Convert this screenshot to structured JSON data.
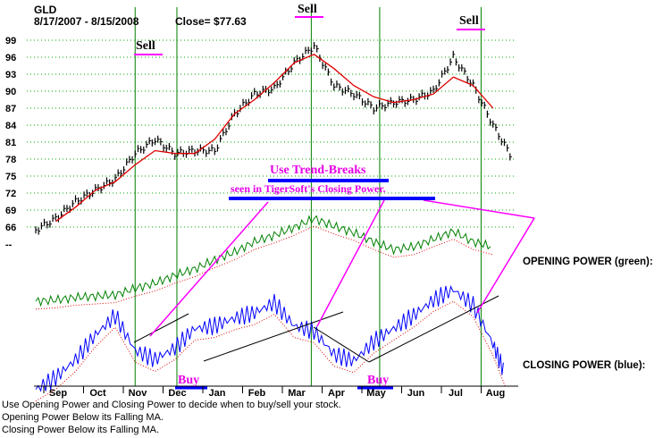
{
  "header": {
    "ticker": "GLD",
    "date_range": "8/17/2007 - 8/15/2008",
    "close": "Close= $77.63"
  },
  "annotations": {
    "trend_note_line1": "Use Trend-Breaks",
    "trend_note_line2": "seen in TigerSoft's Closing Power.",
    "signals": [
      "Sell",
      "Sell",
      "Sell",
      "Buy",
      "Buy"
    ]
  },
  "side_labels": {
    "opening_power": "OPENING POWER (green):",
    "closing_power": "CLOSING POWER (blue):"
  },
  "captions": [
    "Use Opening Power and Closing Power to decide when to buy/sell your stock.",
    "Opening Power Below its Falling MA.",
    "Closing Power Below its Falling MA."
  ],
  "colors": {
    "price_bars": "#000000",
    "moving_average": "#e00000",
    "opening_power": "#008000",
    "closing_power": "#0000ff",
    "trend_lines": "#000000",
    "annotation_lines": "#ff00ff",
    "signal_underline": "#ff00ff",
    "signal_vertical": "#008000",
    "gridline": "#00aa00"
  },
  "chart_data": {
    "type": "line",
    "title": "",
    "y_ticks": [
      "99",
      "96",
      "93",
      "90",
      "87",
      "84",
      "81",
      "78",
      "75",
      "72",
      "69",
      "66",
      "--"
    ],
    "months": [
      "Sep",
      "Oct",
      "Nov",
      "Dec",
      "Jan",
      "Feb",
      "Mar",
      "Apr",
      "May",
      "Jun",
      "Jul",
      "Aug"
    ],
    "ylim": [
      63,
      101
    ],
    "series": [
      {
        "key": "price",
        "name": "",
        "x_month": [
          0,
          0.5,
          1,
          1.5,
          2,
          2.5,
          3,
          3.5,
          4,
          4.5,
          5,
          5.5,
          6,
          6.5,
          7,
          7.5,
          8,
          8.5,
          9,
          9.5,
          10,
          10.5,
          11,
          11.5,
          12
        ],
        "values": [
          65.5,
          67.5,
          70.5,
          72.5,
          74.5,
          79,
          81.5,
          79,
          79.5,
          79.5,
          86,
          89.5,
          90.5,
          95,
          98,
          91,
          89.5,
          87,
          88,
          88.5,
          90,
          96,
          91,
          84,
          78
        ]
      },
      {
        "key": "ma",
        "name": "",
        "x_month": [
          0.5,
          1,
          1.5,
          2,
          2.5,
          3,
          3.5,
          4,
          4.5,
          5,
          5.5,
          6,
          6.5,
          7,
          7.5,
          8,
          8.5,
          9,
          9.5,
          10,
          10.5,
          11,
          11.5
        ],
        "values": [
          67,
          69.5,
          72.5,
          74,
          77,
          79.5,
          79,
          79,
          81.5,
          86,
          88.5,
          91.5,
          95,
          96.5,
          94,
          91,
          89,
          88,
          88.5,
          89.5,
          92.5,
          91,
          87
        ]
      },
      {
        "key": "opening_power",
        "name": "",
        "x_month": [
          0,
          0.5,
          1,
          1.5,
          2,
          2.5,
          3,
          3.5,
          4,
          4.5,
          5,
          5.5,
          6,
          6.5,
          7,
          7.5,
          8,
          8.5,
          9,
          9.5,
          10,
          10.5,
          11,
          11.5
        ],
        "values": [
          0.2,
          0.3,
          0.5,
          0.6,
          0.7,
          1.2,
          1.6,
          2.2,
          2.7,
          3.4,
          4.0,
          4.8,
          5.3,
          5.9,
          6.6,
          6.0,
          5.5,
          4.8,
          4.2,
          4.4,
          5.0,
          5.6,
          4.8,
          4.4
        ]
      },
      {
        "key": "closing_power",
        "name": "",
        "x_month": [
          0,
          0.5,
          1,
          1.5,
          2,
          2.5,
          3,
          3.5,
          4,
          4.5,
          5,
          5.5,
          6,
          6.5,
          7,
          7.5,
          8,
          8.5,
          9,
          9.5,
          10,
          10.5,
          11,
          11.5,
          11.8
        ],
        "values": [
          0.3,
          1.2,
          2.6,
          4.5,
          6.0,
          3.3,
          2.6,
          3.5,
          5.0,
          5.2,
          5.8,
          6.2,
          7.0,
          5.2,
          4.8,
          3.0,
          2.5,
          4.0,
          5.0,
          6.0,
          7.2,
          8.0,
          6.8,
          3.8,
          1.5
        ]
      }
    ],
    "signal_dates": [
      "Nov",
      "Dec",
      "Mar",
      "May",
      "Jul"
    ]
  }
}
